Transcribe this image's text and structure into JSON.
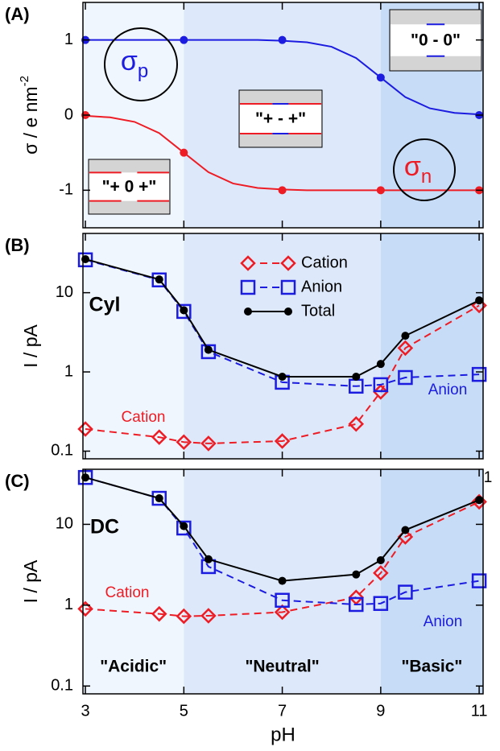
{
  "chart_data": [
    {
      "type": "line",
      "label": "(A)",
      "ylabel": {
        "text": "σ / e nm",
        "sup": "-2"
      },
      "xlim": [
        2.95,
        11.08
      ],
      "xticks": [
        3,
        5,
        7,
        9,
        11
      ],
      "show_xtick_labels": false,
      "ylim": [
        -1.5,
        1.5
      ],
      "yticks": [
        1,
        0,
        -1
      ],
      "ylog": false,
      "band_edges": [
        5,
        9
      ],
      "band_colors": [
        "#f0f6fe",
        "#dde9fa",
        "#c7dcf6"
      ],
      "series": [
        {
          "color": "#1c1ce0",
          "marker": "none",
          "x": [
            3,
            3.5,
            4,
            4.5,
            5,
            5.5,
            6,
            6.5,
            7,
            7.5,
            8,
            8.5,
            9,
            9.5,
            10,
            10.5,
            11
          ],
          "values": [
            1,
            1,
            1,
            1,
            1,
            1,
            1,
            1,
            0.99,
            0.97,
            0.91,
            0.76,
            0.5,
            0.24,
            0.09,
            0.03,
            0.01
          ]
        },
        {
          "color": "#ee1c24",
          "marker": "none",
          "x": [
            3,
            3.5,
            4,
            4.5,
            5,
            5.5,
            6,
            6.5,
            7,
            7.5,
            8,
            8.5,
            9,
            9.5,
            10,
            10.5,
            11
          ],
          "values": [
            -0.01,
            -0.03,
            -0.09,
            -0.24,
            -0.5,
            -0.76,
            -0.91,
            -0.97,
            -0.99,
            -1,
            -1,
            -1,
            -1,
            -1,
            -1,
            -1,
            -1
          ]
        },
        {
          "color": "#1c1ce0",
          "marker": "circle",
          "line": false,
          "x": [
            3,
            5,
            7,
            9,
            11
          ],
          "values": [
            1,
            1,
            1,
            0.5,
            0
          ]
        },
        {
          "color": "#ee1c24",
          "marker": "circle",
          "line": false,
          "x": [
            3,
            5,
            7,
            9,
            11
          ],
          "values": [
            0,
            -0.5,
            -1,
            -1,
            -1
          ]
        }
      ],
      "annotations": [
        {
          "text": "σ",
          "sub": "p",
          "color": "#1c1ce0",
          "circled": true
        },
        {
          "text": "σ",
          "sub": "n",
          "color": "#ee1c24",
          "circled": true
        }
      ],
      "insets": [
        {
          "text": "\"0 - 0\"",
          "segments": [
            null,
            "#1c1ce0",
            null
          ]
        },
        {
          "text": "\"+ - +\"",
          "segments": [
            "#ee1c24",
            "#1c1ce0",
            "#ee1c24"
          ]
        },
        {
          "text": "\"+ 0 +\"",
          "segments": [
            "#ee1c24",
            null,
            "#ee1c24"
          ]
        }
      ]
    },
    {
      "type": "line",
      "label": "(B)",
      "ylabel": {
        "text": "I / pA"
      },
      "xlim": [
        2.95,
        11.08
      ],
      "xticks": [
        3,
        5,
        7,
        9,
        11
      ],
      "show_xtick_labels": false,
      "ylim": [
        0.08,
        56
      ],
      "yticks": [
        0.1,
        1,
        10
      ],
      "ylog": true,
      "band_edges": [
        5,
        9
      ],
      "band_colors": [
        "#f0f6fe",
        "#dde9fa",
        "#c7dcf6"
      ],
      "legend": "upper center",
      "series": [
        {
          "name": "Cation",
          "color": "#ee1c24",
          "marker": "diamond",
          "dash": true,
          "x": [
            3,
            4.5,
            5,
            5.5,
            7,
            8.5,
            9,
            9.5,
            11
          ],
          "values": [
            0.19,
            0.15,
            0.13,
            0.125,
            0.134,
            0.22,
            0.56,
            2.0,
            6.9
          ]
        },
        {
          "name": "Anion",
          "color": "#1c1ce0",
          "marker": "square",
          "dash": true,
          "x": [
            3,
            4.5,
            5,
            5.5,
            7,
            8.5,
            9,
            9.5,
            11
          ],
          "values": [
            26,
            14.5,
            5.8,
            1.8,
            0.74,
            0.66,
            0.69,
            0.85,
            0.93
          ]
        },
        {
          "name": "Total",
          "color": "#000000",
          "marker": "circle",
          "dash": false,
          "x": [
            3,
            4.5,
            5,
            5.5,
            7,
            8.5,
            9,
            9.5,
            11
          ],
          "values": [
            26.5,
            14.7,
            6.0,
            1.9,
            0.87,
            0.87,
            1.26,
            2.86,
            8.0
          ]
        }
      ],
      "annotations": [
        {
          "text": "Cyl",
          "color": "#000000",
          "bold": true
        },
        {
          "text": "Cation",
          "color": "#ee1c24"
        },
        {
          "text": "Anion",
          "color": "#1c1ce0"
        }
      ]
    },
    {
      "type": "line",
      "label": "(C)",
      "ylabel": {
        "text": "I / pA"
      },
      "xlabel": "pH",
      "xlim": [
        2.95,
        11.08
      ],
      "xticks": [
        3,
        5,
        7,
        9,
        11
      ],
      "show_xtick_labels": true,
      "ylim": [
        0.08,
        48
      ],
      "yticks": [
        0.1,
        1,
        10
      ],
      "ylog": true,
      "band_edges": [
        5,
        9
      ],
      "band_colors": [
        "#f0f6fe",
        "#dde9fa",
        "#c7dcf6"
      ],
      "region_labels": [
        "\"Acidic\"",
        "\"Neutral\"",
        "\"Basic\""
      ],
      "series": [
        {
          "color": "#ee1c24",
          "marker": "diamond",
          "dash": true,
          "x": [
            3,
            4.5,
            5,
            5.5,
            7,
            8.5,
            9,
            9.5,
            11
          ],
          "values": [
            0.9,
            0.78,
            0.73,
            0.74,
            0.82,
            1.25,
            2.5,
            7,
            19
          ]
        },
        {
          "color": "#1c1ce0",
          "marker": "square",
          "dash": true,
          "x": [
            3,
            4.5,
            5,
            5.5,
            7,
            8.5,
            9,
            9.5,
            11
          ],
          "values": [
            38,
            21,
            9,
            3.0,
            1.15,
            1.02,
            1.05,
            1.45,
            2.0
          ]
        },
        {
          "color": "#000000",
          "marker": "circle",
          "dash": false,
          "x": [
            3,
            4.5,
            5,
            5.5,
            7,
            8.5,
            9,
            9.5,
            11
          ],
          "values": [
            38,
            21,
            9.5,
            3.7,
            2.0,
            2.4,
            3.6,
            8.5,
            20
          ]
        }
      ],
      "annotations": [
        {
          "text": "DC",
          "color": "#000000",
          "bold": true
        },
        {
          "text": "Cation",
          "color": "#ee1c24"
        },
        {
          "text": "Anion",
          "color": "#1c1ce0"
        },
        {
          "text": "1",
          "color": "#000000"
        }
      ]
    }
  ]
}
